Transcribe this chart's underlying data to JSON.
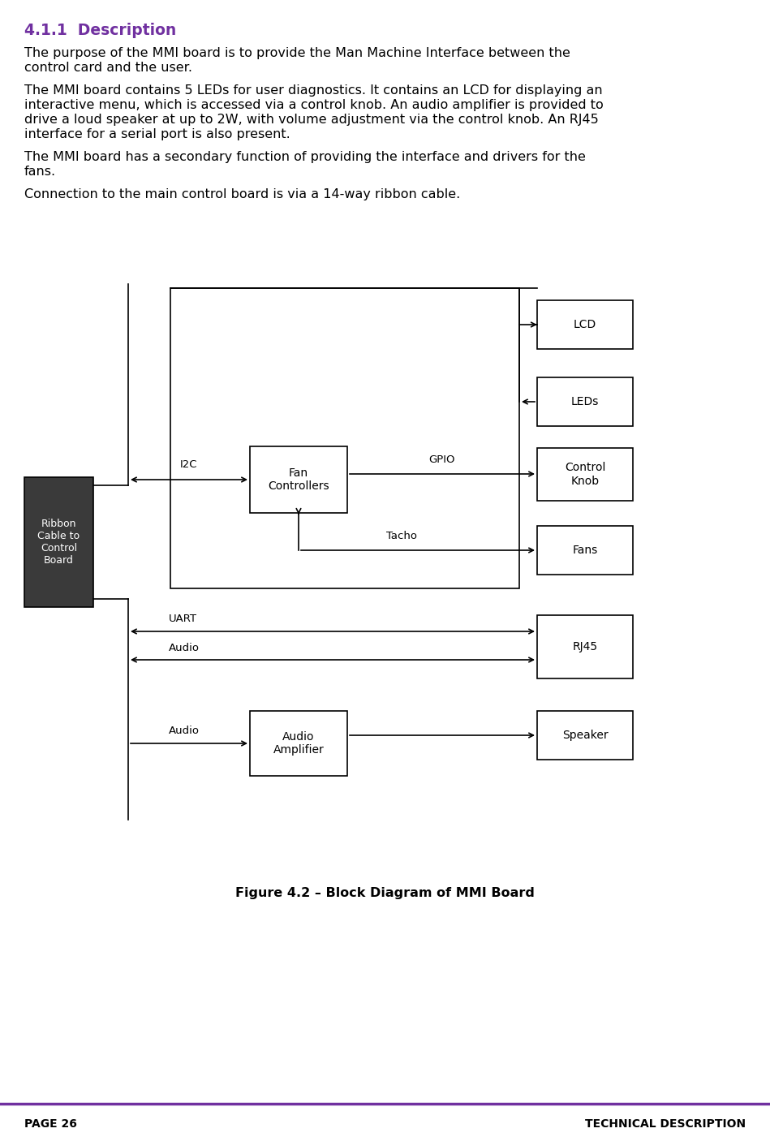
{
  "page_bg": "#ffffff",
  "header_color": "#7030A0",
  "header_text": "4.1.1  Description",
  "body_paragraphs": [
    "The purpose of the MMI board is to provide the Man Machine Interface between the\ncontrol card and the user.",
    "The MMI board contains 5 LEDs for user diagnostics. It contains an LCD for displaying an\ninteractive menu, which is accessed via a control knob. An audio amplifier is provided to\ndrive a loud speaker at up to 2W, with volume adjustment via the control knob. An RJ45\ninterface for a serial port is also present.",
    "The MMI board has a secondary function of providing the interface and drivers for the\nfans.",
    "Connection to the main control board is via a 14-way ribbon cable."
  ],
  "figure_caption": "Figure 4.2 – Block Diagram of MMI Board",
  "footer_left": "PAGE 26",
  "footer_right": "TECHNICAL DESCRIPTION",
  "footer_line_color": "#7030A0",
  "body_font_size": 11.5,
  "header_font_size": 13.5
}
